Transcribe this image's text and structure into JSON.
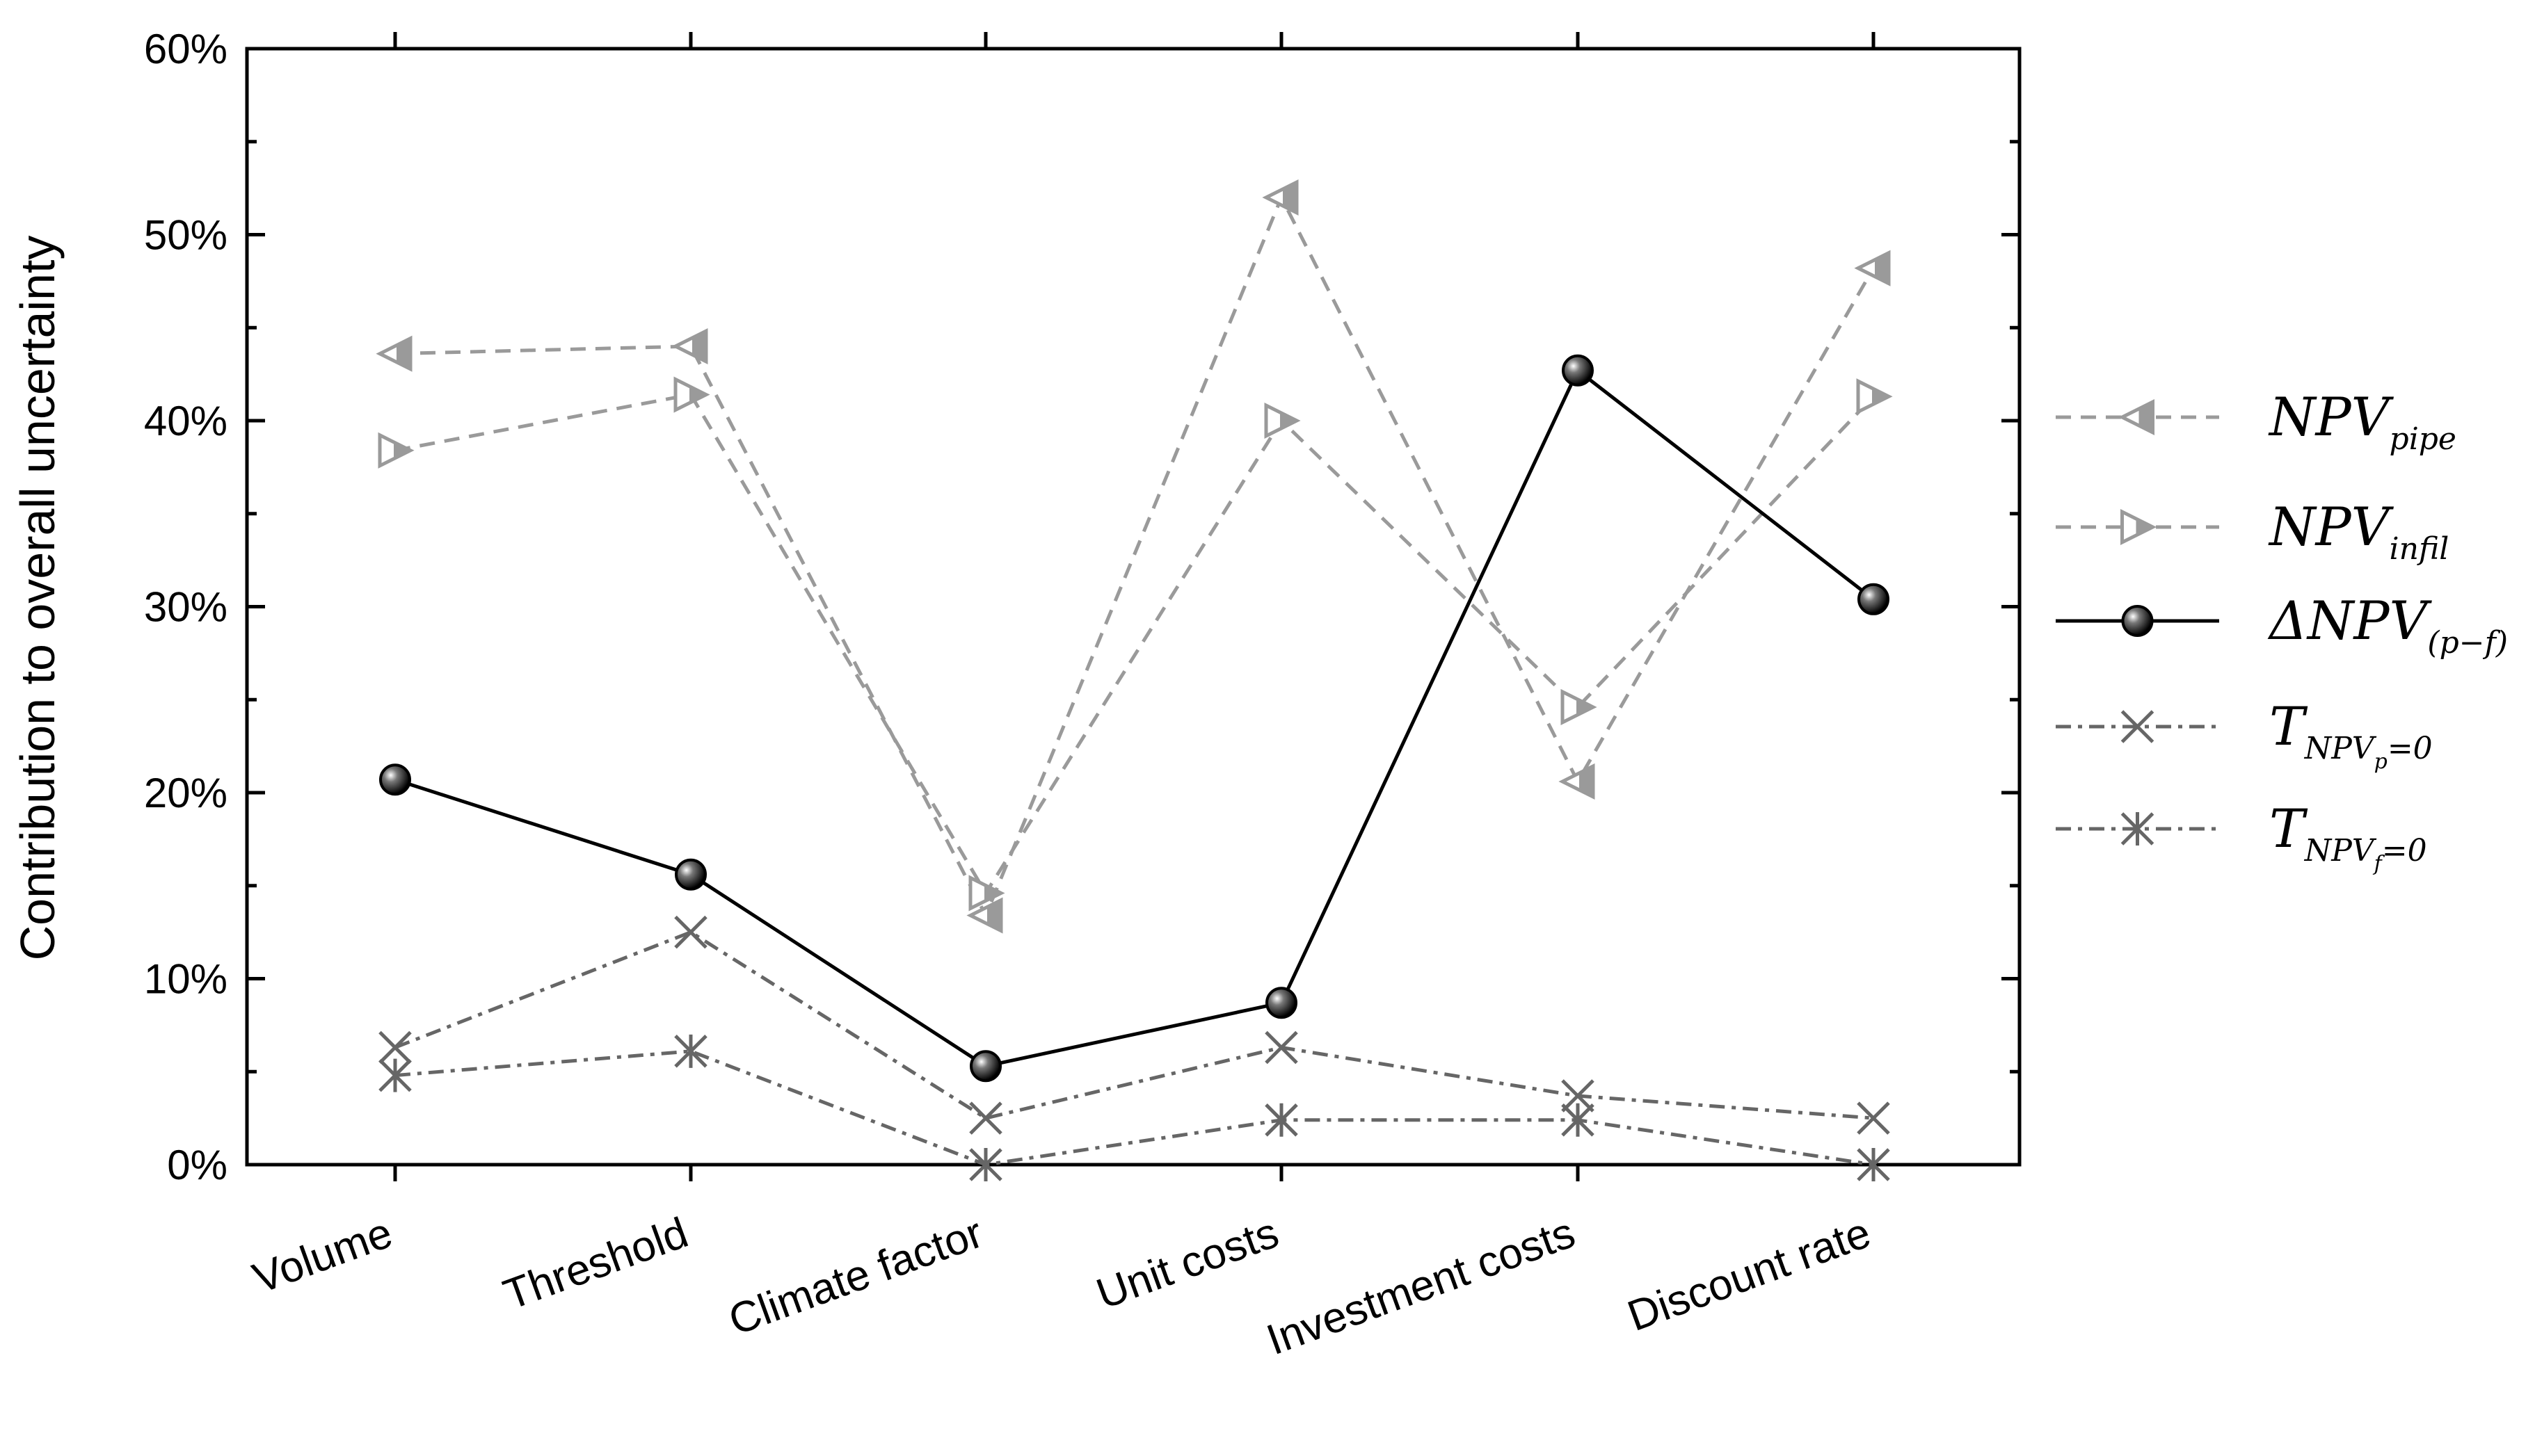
{
  "chart_data": {
    "type": "line",
    "ylabel": "Contribution to overall uncertainty",
    "xlabel": "",
    "ylim": [
      0,
      60
    ],
    "yticks": [
      0,
      10,
      20,
      30,
      40,
      50,
      60
    ],
    "ytick_labels": [
      "0%",
      "10%",
      "20%",
      "30%",
      "40%",
      "50%",
      "60%"
    ],
    "categories": [
      "Volume",
      "Threshold",
      "Climate factor",
      "Unit costs",
      "Investment costs",
      "Discount rate"
    ],
    "legend_position": "right",
    "series": [
      {
        "legend_main": "NPV",
        "legend_sub": "pipe",
        "legend_prefix": "",
        "legend_sub2": "",
        "legend_suffix": "",
        "marker": "triangle-left",
        "line": "dashed",
        "color": "#9a9a9a",
        "values": [
          43.6,
          44.0,
          13.4,
          52.0,
          20.6,
          48.2
        ]
      },
      {
        "legend_main": "NPV",
        "legend_sub": "infil",
        "legend_prefix": "",
        "legend_sub2": "",
        "legend_suffix": "",
        "marker": "triangle-right",
        "line": "dashed",
        "color": "#9a9a9a",
        "values": [
          38.4,
          41.4,
          14.6,
          40.0,
          24.6,
          41.3
        ]
      },
      {
        "legend_main": "NPV",
        "legend_sub": "(p−f)",
        "legend_prefix": "Δ",
        "legend_sub2": "",
        "legend_suffix": "",
        "marker": "circle",
        "line": "solid",
        "color": "#000000",
        "values": [
          20.7,
          15.6,
          5.3,
          8.7,
          42.7,
          30.4
        ]
      },
      {
        "legend_main": "T",
        "legend_sub": "NPV",
        "legend_prefix": "",
        "legend_sub2": "p",
        "legend_suffix": "=0",
        "marker": "x",
        "line": "dashdot",
        "color": "#666666",
        "values": [
          6.3,
          12.5,
          2.5,
          6.3,
          3.7,
          2.5
        ]
      },
      {
        "legend_main": "T",
        "legend_sub": "NPV",
        "legend_prefix": "",
        "legend_sub2": "f",
        "legend_suffix": "=0",
        "marker": "asterisk",
        "line": "dashdot",
        "color": "#666666",
        "values": [
          4.8,
          6.1,
          0.0,
          2.4,
          2.4,
          0.0
        ]
      }
    ]
  }
}
